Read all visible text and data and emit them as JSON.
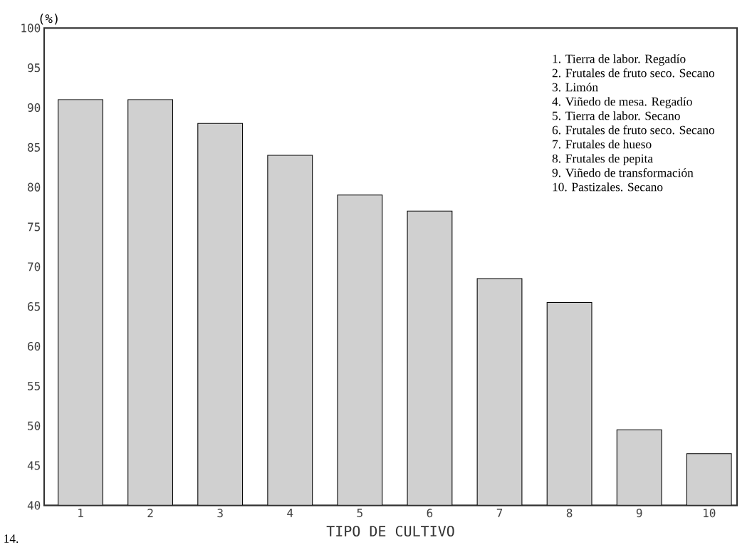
{
  "chart_data": {
    "type": "bar",
    "xlabel": "TIPO DE CULTIVO",
    "ylabel": "(%)",
    "categories": [
      "1",
      "2",
      "3",
      "4",
      "5",
      "6",
      "7",
      "8",
      "9",
      "10"
    ],
    "values": [
      91,
      91,
      88,
      84,
      79,
      77,
      68.5,
      65.5,
      49.5,
      46.5
    ],
    "color": "#d0d0d0",
    "ylim": [
      40,
      100
    ],
    "yticks": [
      40,
      45,
      50,
      55,
      60,
      65,
      70,
      75,
      80,
      85,
      90,
      95,
      100
    ],
    "grid": false,
    "annotations": [
      "1.  Tierra de labor. Regadío",
      "2.  Frutales de fruto seco. Secano",
      "3.  Limón",
      "4.  Viñedo de mesa. Regadío",
      "5.  Tierra de labor. Secano",
      "6.  Frutales de fruto seco. Secano",
      "7.  Frutales de hueso",
      "8.  Frutales de pepita",
      "9.  Viñedo de transformación",
      "10.  Pastizales. Secano",
      "14."
    ]
  }
}
